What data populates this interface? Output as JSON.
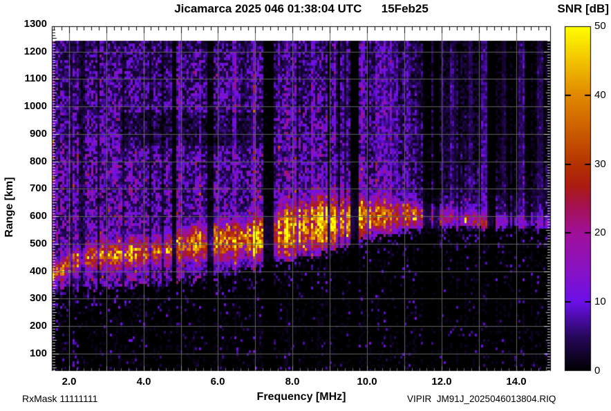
{
  "header": {
    "title": "Jicamarca 2025 046 01:38:04 UTC      15Feb25",
    "colorbar_title": "SNR [dB]"
  },
  "footer": {
    "rx_mask": "RxMask 11111111",
    "file_id": "VIPIR  JM91J_2025046013804.RIQ"
  },
  "chart_data": {
    "type": "heatmap",
    "title": "Jicamarca 2025 046 01:38:04 UTC      15Feb25",
    "xlabel": "Frequency [MHz]",
    "ylabel": "Range [km]",
    "colorbar_label": "SNR [dB]",
    "xlim": [
      1.54,
      14.93
    ],
    "ylim_km": [
      37,
      1292
    ],
    "data_top_km": 1238,
    "x_tick_values": [
      2,
      4,
      6,
      8,
      10,
      12,
      14
    ],
    "x_tick_labels": [
      "2.0",
      "4.0",
      "6.0",
      "8.0",
      "10.0",
      "12.0",
      "14.0"
    ],
    "y_tick_values": [
      100,
      200,
      300,
      400,
      500,
      600,
      700,
      800,
      900,
      1000,
      1100,
      1200,
      1300
    ],
    "colorbar_range": [
      0,
      50
    ],
    "colorbar_ticks": [
      0,
      10,
      20,
      30,
      40,
      50
    ],
    "grid": {
      "x_major_step": 1.0,
      "x_minor_step": 0.2,
      "y_major_step": 100,
      "y_minor_step": 10,
      "grid_color": "#606060"
    },
    "palette": [
      [
        0,
        "#000000"
      ],
      [
        5,
        "#26075a"
      ],
      [
        10,
        "#6a10e8"
      ],
      [
        15,
        "#8a12c2"
      ],
      [
        20,
        "#a0109a"
      ],
      [
        24,
        "#a51150"
      ],
      [
        27,
        "#ab1c10"
      ],
      [
        30,
        "#b43200"
      ],
      [
        35,
        "#cc5e00"
      ],
      [
        40,
        "#e08800"
      ],
      [
        45,
        "#f2c300"
      ],
      [
        50,
        "#ffff00"
      ]
    ],
    "features": {
      "seed": 20250215,
      "noise_base_db": 13,
      "boundary_km": [
        [
          1.54,
          330
        ],
        [
          2.5,
          338
        ],
        [
          3.5,
          344
        ],
        [
          4.5,
          354
        ],
        [
          5.3,
          366
        ],
        [
          6.0,
          384
        ],
        [
          6.6,
          400
        ],
        [
          7.2,
          418
        ],
        [
          7.8,
          436
        ],
        [
          8.4,
          452
        ],
        [
          9.0,
          468
        ],
        [
          9.4,
          482
        ],
        [
          9.7,
          498
        ],
        [
          10.0,
          515
        ],
        [
          10.5,
          532
        ],
        [
          11.0,
          542
        ],
        [
          11.7,
          550
        ],
        [
          12.5,
          556
        ],
        [
          14.93,
          560
        ]
      ],
      "echo_center_km": [
        [
          1.54,
          385
        ],
        [
          2.0,
          430
        ],
        [
          2.6,
          452
        ],
        [
          3.4,
          462
        ],
        [
          4.2,
          468
        ],
        [
          5.0,
          492
        ],
        [
          5.6,
          502
        ],
        [
          6.2,
          508
        ],
        [
          6.9,
          520
        ],
        [
          7.5,
          538
        ],
        [
          8.1,
          556
        ],
        [
          8.7,
          572
        ],
        [
          9.3,
          586
        ],
        [
          9.8,
          594
        ],
        [
          10.4,
          602
        ],
        [
          11.0,
          606
        ],
        [
          11.6,
          600
        ],
        [
          12.2,
          594
        ],
        [
          13.0,
          586
        ],
        [
          14.0,
          576
        ],
        [
          14.93,
          570
        ]
      ],
      "echo_width_km": [
        [
          1.54,
          26
        ],
        [
          2.2,
          40
        ],
        [
          3.5,
          45
        ],
        [
          4.8,
          50
        ],
        [
          5.5,
          58
        ],
        [
          6.5,
          58
        ],
        [
          7.5,
          68
        ],
        [
          8.3,
          82
        ],
        [
          9.3,
          85
        ],
        [
          9.9,
          60
        ],
        [
          10.6,
          50
        ],
        [
          11.3,
          42
        ],
        [
          12.0,
          34
        ],
        [
          13.0,
          30
        ],
        [
          14.93,
          26
        ]
      ],
      "echo_amp_db": [
        [
          1.54,
          26
        ],
        [
          1.85,
          28
        ],
        [
          2.1,
          24
        ],
        [
          2.6,
          23
        ],
        [
          3.2,
          23
        ],
        [
          4.0,
          24
        ],
        [
          4.55,
          25
        ],
        [
          4.95,
          29
        ],
        [
          5.3,
          29
        ],
        [
          5.7,
          27
        ],
        [
          6.1,
          28
        ],
        [
          6.6,
          31
        ],
        [
          7.05,
          31
        ],
        [
          7.35,
          24
        ],
        [
          7.7,
          30
        ],
        [
          8.2,
          32
        ],
        [
          8.7,
          33
        ],
        [
          9.2,
          33
        ],
        [
          9.5,
          32
        ],
        [
          9.9,
          28
        ],
        [
          10.4,
          29
        ],
        [
          10.9,
          27
        ],
        [
          11.3,
          25
        ],
        [
          11.7,
          18
        ],
        [
          12.2,
          16
        ],
        [
          12.8,
          15
        ],
        [
          13.4,
          12
        ],
        [
          14.0,
          10
        ],
        [
          14.93,
          9
        ]
      ],
      "noise_freq_profile": [
        [
          1.54,
          1.05
        ],
        [
          3.0,
          1.0
        ],
        [
          4.5,
          0.95
        ],
        [
          5.2,
          0.82
        ],
        [
          6.0,
          0.8
        ],
        [
          7.0,
          0.9
        ],
        [
          8.0,
          0.92
        ],
        [
          9.0,
          0.9
        ],
        [
          9.6,
          0.8
        ],
        [
          10.0,
          0.88
        ],
        [
          10.6,
          0.9
        ],
        [
          11.2,
          0.6
        ],
        [
          12.0,
          0.5
        ],
        [
          12.4,
          0.68
        ],
        [
          13.0,
          0.6
        ],
        [
          13.4,
          0.45
        ],
        [
          14.0,
          0.42
        ],
        [
          14.93,
          0.38
        ]
      ],
      "dark_stripes": [
        [
          2.28,
          2.33,
          0.35
        ],
        [
          3.02,
          3.07,
          0.4
        ],
        [
          4.76,
          4.9,
          0.12
        ],
        [
          5.74,
          5.9,
          0.15
        ],
        [
          7.22,
          7.52,
          0.1
        ],
        [
          8.95,
          9.0,
          0.4
        ],
        [
          9.55,
          9.8,
          0.1
        ],
        [
          10.0,
          10.06,
          0.3
        ],
        [
          11.52,
          11.7,
          0.18
        ],
        [
          11.76,
          11.93,
          0.22
        ],
        [
          12.42,
          12.52,
          0.3
        ],
        [
          13.28,
          13.45,
          0.2
        ],
        [
          13.9,
          13.97,
          0.4
        ],
        [
          14.28,
          14.4,
          0.45
        ]
      ],
      "bright_stripes": [
        [
          1.54,
          1.62,
          5
        ],
        [
          2.02,
          2.12,
          4
        ],
        [
          4.92,
          5.02,
          5
        ],
        [
          5.5,
          5.56,
          3
        ],
        [
          5.98,
          6.06,
          4
        ],
        [
          6.4,
          6.48,
          4
        ],
        [
          6.88,
          6.98,
          4
        ],
        [
          7.6,
          7.68,
          3
        ],
        [
          8.02,
          8.1,
          3
        ],
        [
          8.52,
          8.62,
          4
        ],
        [
          9.1,
          9.18,
          3
        ],
        [
          9.3,
          9.5,
          2
        ],
        [
          9.84,
          9.96,
          4
        ],
        [
          10.2,
          10.85,
          3
        ],
        [
          11.06,
          11.16,
          3
        ],
        [
          11.98,
          12.06,
          3
        ],
        [
          12.24,
          12.4,
          4
        ],
        [
          12.72,
          12.86,
          4
        ],
        [
          13.06,
          13.2,
          4
        ],
        [
          13.6,
          13.7,
          2
        ],
        [
          14.08,
          14.22,
          4
        ],
        [
          14.55,
          14.75,
          3
        ]
      ],
      "dark_patches": [
        {
          "f": [
            3.4,
            7.2
          ],
          "r": [
            858,
            975
          ],
          "mult": 0.5
        },
        {
          "f": [
            11.8,
            14.93
          ],
          "r": [
            680,
            1240
          ],
          "mult": 0.6
        },
        {
          "f": [
            12.6,
            14.93
          ],
          "r": [
            800,
            1240
          ],
          "mult": 0.7
        }
      ],
      "bright_patches": [
        {
          "f": [
            4.8,
            6.6
          ],
          "r": [
            950,
            1200
          ],
          "mult": 1.25
        }
      ]
    }
  }
}
